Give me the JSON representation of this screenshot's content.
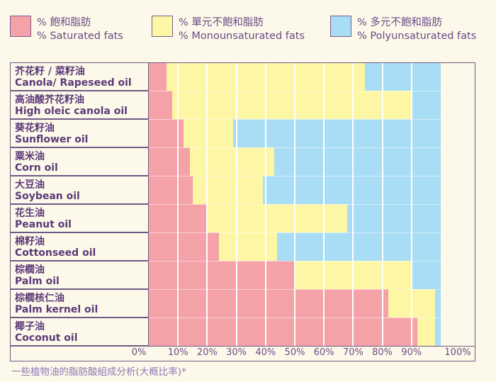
{
  "legend": [
    {
      "zh": "% 飽和脂肪",
      "en": "% Saturated fats",
      "color": "#f4a1a8"
    },
    {
      "zh": "% 單元不飽和脂肪",
      "en": "% Monounsaturated fats",
      "color": "#fdf6a4"
    },
    {
      "zh": "% 多元不飽和脂肪",
      "en": "% Polyunsaturated fats",
      "color": "#a8ddf5"
    }
  ],
  "caption": "一些植物油的脂肪酸組成分析(大概比率)*",
  "chart_data": {
    "type": "bar",
    "orientation": "horizontal",
    "stacked": true,
    "categories": [
      {
        "zh": "芥花籽 / 菜籽油",
        "en": "Canola/ Rapeseed oil"
      },
      {
        "zh": "高油酸芥花籽油",
        "en": "High oleic canola oil"
      },
      {
        "zh": "葵花籽油",
        "en": "Sunflower oil"
      },
      {
        "zh": "粟米油",
        "en": "Corn oil"
      },
      {
        "zh": "大豆油",
        "en": "Soybean oil"
      },
      {
        "zh": "花生油",
        "en": "Peanut oil"
      },
      {
        "zh": "棉籽油",
        "en": "Cottonseed oil"
      },
      {
        "zh": "棕櫚油",
        "en": "Palm oil"
      },
      {
        "zh": "棕櫚核仁油",
        "en": "Palm kernel oil"
      },
      {
        "zh": "椰子油",
        "en": "Coconut oil"
      }
    ],
    "series": [
      {
        "name": "% Saturated fats",
        "color": "#f4a1a8",
        "values": [
          6,
          8,
          12,
          14,
          15,
          20,
          24,
          50,
          82,
          92
        ]
      },
      {
        "name": "% Monounsaturated fats",
        "color": "#fdf6a4",
        "values": [
          68,
          82,
          17,
          29,
          24,
          48,
          20,
          40,
          16,
          6
        ]
      },
      {
        "name": "% Polyunsaturated fats",
        "color": "#a8ddf5",
        "values": [
          26,
          10,
          71,
          57,
          61,
          32,
          56,
          10,
          2,
          2
        ]
      }
    ],
    "xlim": [
      0,
      100
    ],
    "xticks": [
      "0%",
      "10%",
      "20%",
      "30%",
      "40%",
      "50%",
      "60%",
      "70%",
      "80%",
      "90%",
      "100%"
    ],
    "grid": true,
    "legend_position": "top"
  }
}
